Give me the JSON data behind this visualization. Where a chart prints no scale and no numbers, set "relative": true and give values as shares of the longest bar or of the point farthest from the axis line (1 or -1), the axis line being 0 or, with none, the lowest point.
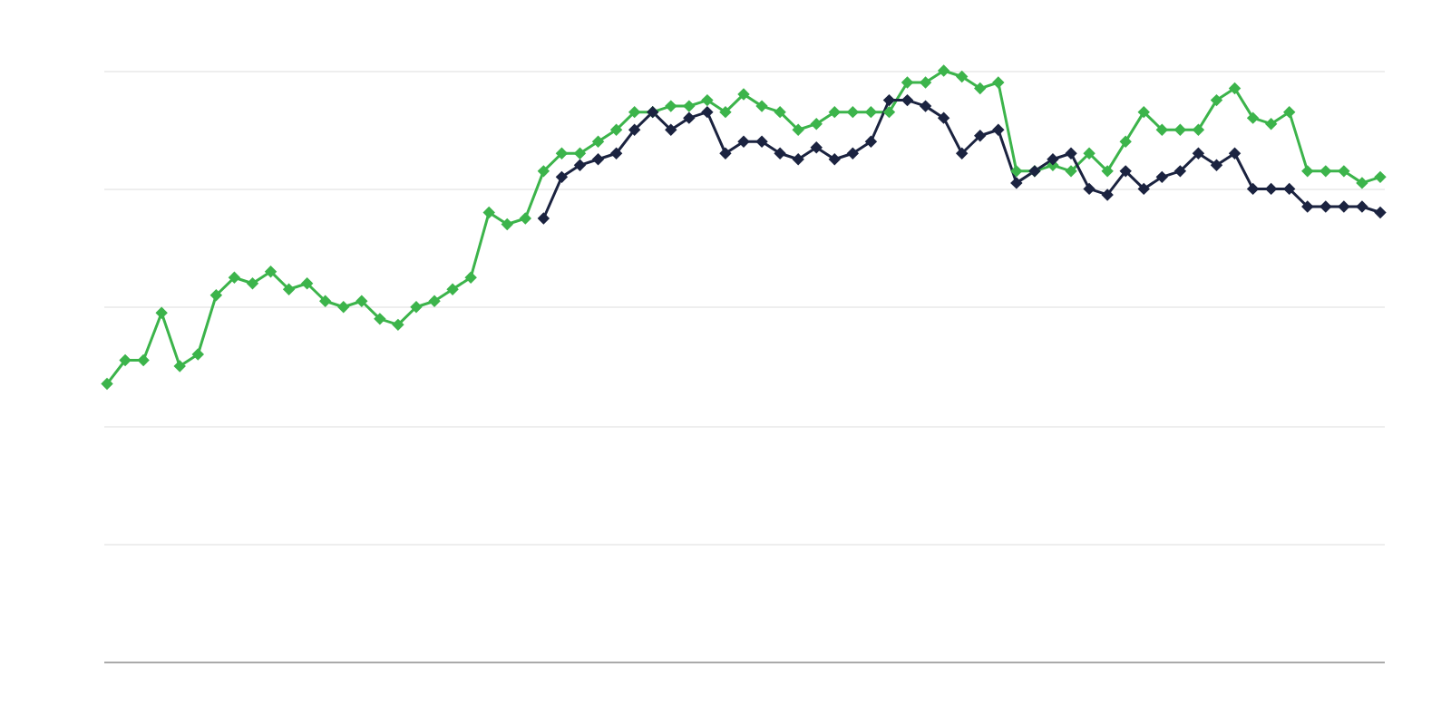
{
  "chart_data": {
    "type": "line",
    "relative": true,
    "grid": "y",
    "legend": false,
    "marker": "diamond",
    "line_style": "solid",
    "categories": [
      null,
      null,
      null,
      null,
      null,
      null,
      null,
      null,
      null,
      null,
      null,
      null,
      null,
      null,
      null,
      null,
      null,
      null,
      null,
      null,
      null,
      null,
      null,
      null,
      null,
      null,
      null,
      null,
      null,
      null,
      null,
      null,
      null,
      null,
      null,
      null,
      null,
      null,
      null,
      null,
      null,
      null,
      null,
      null,
      null,
      null,
      null,
      null,
      null,
      null,
      null,
      null,
      null,
      null,
      null,
      null,
      null,
      null,
      null,
      null,
      null,
      null,
      null,
      null,
      null,
      null,
      null,
      null,
      null,
      null,
      null
    ],
    "series": [
      {
        "color": "#3cb44b",
        "values": [
          0.47,
          0.51,
          0.51,
          0.59,
          0.5,
          0.52,
          0.62,
          0.65,
          0.64,
          0.66,
          0.63,
          0.64,
          0.61,
          0.6,
          0.61,
          0.58,
          0.57,
          0.6,
          0.61,
          0.63,
          0.65,
          0.76,
          0.74,
          0.75,
          0.83,
          0.86,
          0.86,
          0.88,
          0.9,
          0.93,
          0.93,
          0.94,
          0.94,
          0.95,
          0.93,
          0.96,
          0.94,
          0.93,
          0.9,
          0.91,
          0.93,
          0.93,
          0.93,
          0.93,
          0.98,
          0.98,
          1,
          0.99,
          0.97,
          0.98,
          0.83,
          0.83,
          0.84,
          0.83,
          0.86,
          0.83,
          0.88,
          0.93,
          0.9,
          0.9,
          0.9,
          0.95,
          0.97,
          0.92,
          0.91,
          0.93,
          0.83,
          0.83,
          0.83,
          0.81,
          0.82
        ]
      },
      {
        "color": "#1b2340",
        "values": [
          null,
          null,
          null,
          null,
          null,
          null,
          null,
          null,
          null,
          null,
          null,
          null,
          null,
          null,
          null,
          null,
          null,
          null,
          null,
          null,
          null,
          null,
          null,
          null,
          0.75,
          0.82,
          0.84,
          0.85,
          0.86,
          0.9,
          0.93,
          0.9,
          0.92,
          0.93,
          0.86,
          0.88,
          0.88,
          0.86,
          0.85,
          0.87,
          0.85,
          0.86,
          0.88,
          0.95,
          0.95,
          0.94,
          0.92,
          0.86,
          0.89,
          0.9,
          0.81,
          0.83,
          0.85,
          0.86,
          0.8,
          0.79,
          0.83,
          0.8,
          0.82,
          0.83,
          0.86,
          0.84,
          0.86,
          0.8,
          0.8,
          0.8,
          0.77,
          0.77,
          0.77,
          0.77,
          0.76
        ]
      }
    ]
  }
}
